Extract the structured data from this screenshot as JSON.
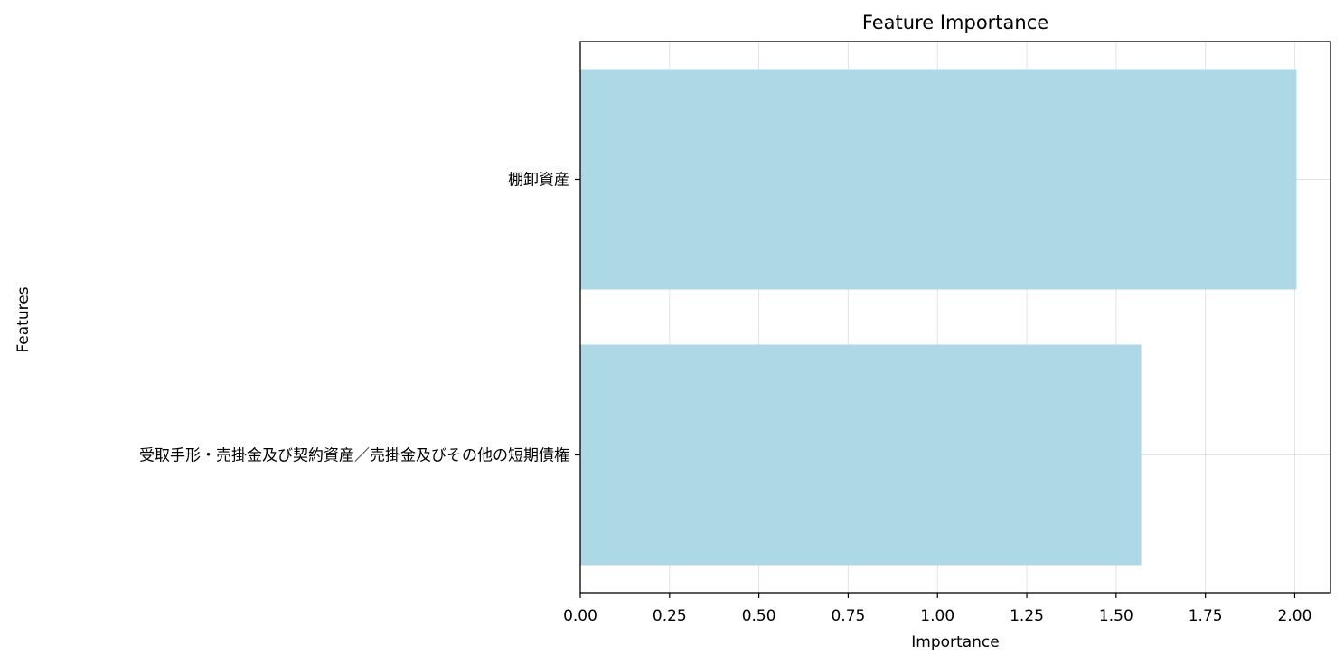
{
  "chart_data": {
    "type": "bar",
    "orientation": "horizontal",
    "title": "Feature Importance",
    "xlabel": "Importance",
    "ylabel": "Features",
    "categories": [
      "棚卸資産",
      "受取手形・売掛金及び契約資産／売掛金及びその他の短期債権"
    ],
    "values": [
      2.005,
      1.57
    ],
    "xlim": [
      0,
      2.1
    ],
    "xticks": [
      0.0,
      0.25,
      0.5,
      0.75,
      1.0,
      1.25,
      1.5,
      1.75,
      2.0
    ],
    "xtick_labels": [
      "0.00",
      "0.25",
      "0.50",
      "0.75",
      "1.00",
      "1.25",
      "1.50",
      "1.75",
      "2.00"
    ],
    "grid": true,
    "bar_color": "#add8e6"
  }
}
